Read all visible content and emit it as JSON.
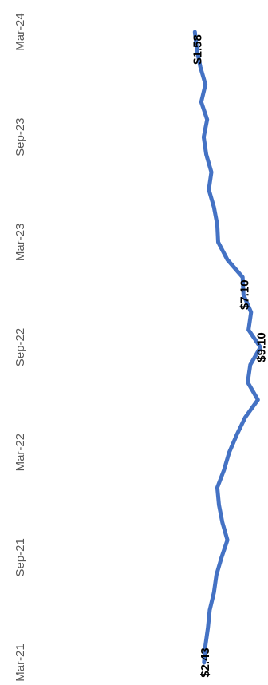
{
  "chart_data": {
    "type": "line",
    "title": "",
    "xlabel": "",
    "ylabel": "",
    "orientation": "rotated-90-clockwise",
    "grid": false,
    "legend": "none",
    "x_ticks": [
      "Mar-21",
      "Sep-21",
      "Mar-22",
      "Sep-22",
      "Mar-23",
      "Sep-23",
      "Mar-24"
    ],
    "ylim": [
      0,
      10
    ],
    "series": [
      {
        "name": "",
        "color": "#4472C4",
        "points": [
          [
            "2021-03",
            2.43
          ],
          [
            "2021-04",
            2.6
          ],
          [
            "2021-05",
            2.9
          ],
          [
            "2021-06",
            3.1
          ],
          [
            "2021-07",
            3.6
          ],
          [
            "2021-08",
            3.9
          ],
          [
            "2021-09",
            4.5
          ],
          [
            "2021-10",
            5.2
          ],
          [
            "2021-11",
            4.6
          ],
          [
            "2021-12",
            4.2
          ],
          [
            "2022-01",
            4.0
          ],
          [
            "2022-02",
            4.8
          ],
          [
            "2022-03",
            5.4
          ],
          [
            "2022-04",
            6.3
          ],
          [
            "2022-05",
            7.3
          ],
          [
            "2022-06",
            8.8
          ],
          [
            "2022-07",
            7.6
          ],
          [
            "2022-08",
            7.9
          ],
          [
            "2022-09",
            9.1
          ],
          [
            "2022-10",
            7.7
          ],
          [
            "2022-11",
            8.0
          ],
          [
            "2022-12",
            7.1
          ],
          [
            "2023-01",
            7.0
          ],
          [
            "2023-02",
            5.2
          ],
          [
            "2023-03",
            4.1
          ],
          [
            "2023-04",
            4.0
          ],
          [
            "2023-05",
            3.6
          ],
          [
            "2023-06",
            3.0
          ],
          [
            "2023-07",
            3.3
          ],
          [
            "2023-08",
            2.7
          ],
          [
            "2023-09",
            2.4
          ],
          [
            "2023-10",
            2.8
          ],
          [
            "2023-11",
            2.1
          ],
          [
            "2023-12",
            2.6
          ],
          [
            "2024-01",
            2.0
          ],
          [
            "2024-02",
            1.58
          ],
          [
            "2024-03",
            1.35
          ]
        ]
      }
    ],
    "data_labels": [
      {
        "x": "2021-03",
        "text": "$2.43"
      },
      {
        "x": "2022-09",
        "text": "$9.10"
      },
      {
        "x": "2022-12",
        "text": "$7.10"
      },
      {
        "x": "2024-02",
        "text": "$1.58"
      }
    ]
  }
}
